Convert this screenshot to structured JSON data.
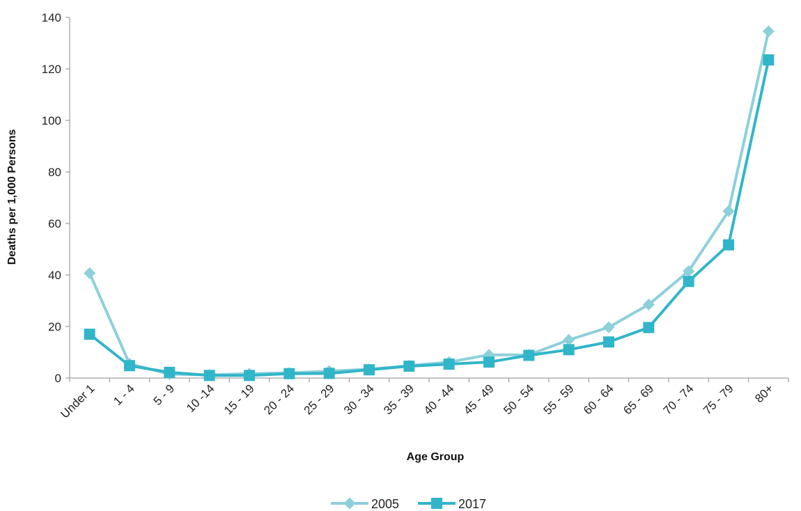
{
  "chart_data": {
    "type": "line",
    "title": "",
    "xlabel": "Age Group",
    "ylabel": "Deaths per 1,000 Persons",
    "ylim": [
      0,
      140
    ],
    "yticks": [
      "0",
      "20",
      "40",
      "60",
      "80",
      "100",
      "120",
      "140"
    ],
    "categories": [
      "Under 1",
      "1 - 4",
      "5 - 9",
      "10 -14",
      "15 - 19",
      "20 - 24",
      "25 - 29",
      "30 - 34",
      "35 - 39",
      "40 - 44",
      "45 - 49",
      "50 - 54",
      "55 - 59",
      "60 - 64",
      "65 - 69",
      "70 - 74",
      "75 - 79",
      "80+"
    ],
    "grid": false,
    "legend_position": "bottom",
    "series": [
      {
        "name": "2005",
        "color": "#8dd0da",
        "marker": "diamond",
        "values": [
          40.7,
          5.5,
          1.5,
          1.2,
          1.7,
          2.0,
          2.7,
          3.4,
          4.8,
          6.2,
          9.0,
          9.0,
          14.8,
          19.7,
          28.5,
          41.5,
          64.8,
          134.6
        ]
      },
      {
        "name": "2017",
        "color": "#31b5c9",
        "marker": "square",
        "values": [
          17.0,
          4.8,
          2.2,
          1.0,
          1.0,
          1.7,
          1.8,
          3.2,
          4.6,
          5.4,
          6.2,
          8.8,
          11.0,
          14.0,
          19.6,
          37.5,
          51.7,
          123.5
        ]
      }
    ]
  }
}
